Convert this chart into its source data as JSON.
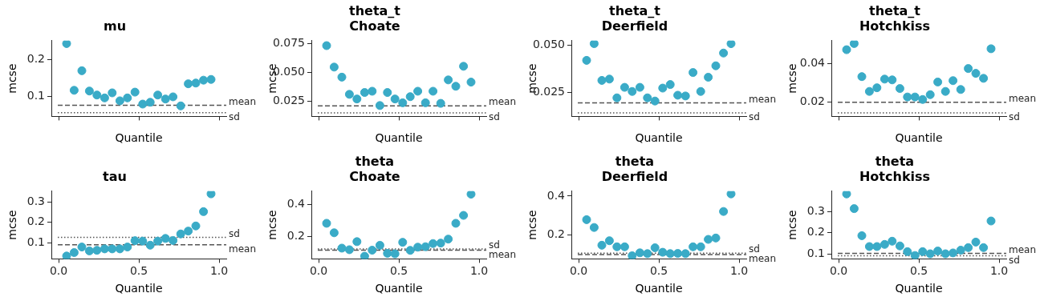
{
  "chart_data": [
    {
      "type": "scatter",
      "title": "mu",
      "xlabel": "Quantile",
      "ylabel": "mcse",
      "color": "#3aabc7",
      "marker": "circle",
      "tick_labels": "y",
      "xlim": [
        -0.045,
        1.045
      ],
      "ylim": [
        0.044,
        0.253
      ],
      "xticks": [
        {
          "value": 0,
          "label": null
        },
        {
          "value": 0.5,
          "label": null
        },
        {
          "value": 1,
          "label": null
        }
      ],
      "yticks": [
        0.1,
        0.2
      ],
      "x": [
        0.05,
        0.097,
        0.145,
        0.192,
        0.239,
        0.287,
        0.334,
        0.382,
        0.429,
        0.476,
        0.524,
        0.571,
        0.618,
        0.666,
        0.713,
        0.761,
        0.808,
        0.855,
        0.903,
        0.95
      ],
      "values": [
        0.245,
        0.116,
        0.17,
        0.114,
        0.103,
        0.095,
        0.109,
        0.087,
        0.095,
        0.111,
        0.078,
        0.083,
        0.103,
        0.092,
        0.098,
        0.073,
        0.134,
        0.136,
        0.144,
        0.146
      ],
      "ref_lines": [
        {
          "axis": "y",
          "value": 0.0745,
          "label": "mean",
          "line_style": "dashed",
          "color": "#555555"
        },
        {
          "axis": "y",
          "value": 0.054,
          "label": "sd",
          "line_style": "dotted",
          "color": "#555555"
        }
      ]
    },
    {
      "type": "scatter",
      "title": "theta_t\nChoate",
      "xlabel": "Quantile",
      "ylabel": "mcse",
      "color": "#3aabc7",
      "marker": "circle",
      "tick_labels": "y",
      "xlim": [
        -0.045,
        1.045
      ],
      "ylim": [
        0.0119,
        0.0775
      ],
      "xticks": [
        {
          "value": 0,
          "label": null
        },
        {
          "value": 0.5,
          "label": null
        },
        {
          "value": 1,
          "label": null
        }
      ],
      "yticks": [
        0.025,
        {
          "value": 0.05,
          "label": "0.050"
        },
        0.075
      ],
      "x": [
        0.05,
        0.097,
        0.145,
        0.192,
        0.239,
        0.287,
        0.334,
        0.382,
        0.429,
        0.476,
        0.524,
        0.571,
        0.618,
        0.666,
        0.713,
        0.761,
        0.808,
        0.855,
        0.903,
        0.95
      ],
      "values": [
        0.0732,
        0.0546,
        0.0459,
        0.031,
        0.027,
        0.0326,
        0.0337,
        0.0213,
        0.0326,
        0.027,
        0.0237,
        0.029,
        0.0337,
        0.0237,
        0.0337,
        0.0232,
        0.0435,
        0.038,
        0.0553,
        0.0416
      ],
      "ref_lines": [
        {
          "axis": "y",
          "value": 0.0211,
          "label": "mean",
          "line_style": "dashed",
          "color": "#555555"
        },
        {
          "axis": "y",
          "value": 0.0149,
          "label": "sd",
          "line_style": "dotted",
          "color": "#555555"
        }
      ]
    },
    {
      "type": "scatter",
      "title": "theta_t\nDeerfield",
      "xlabel": "Quantile",
      "ylabel": "mcse",
      "color": "#3aabc7",
      "marker": "circle",
      "tick_labels": "y",
      "xlim": [
        -0.045,
        1.045
      ],
      "ylim": [
        0.0121,
        0.0525
      ],
      "xticks": [
        {
          "value": 0,
          "label": null
        },
        {
          "value": 0.5,
          "label": null
        },
        {
          "value": 1,
          "label": null
        }
      ],
      "yticks": [
        0.025,
        {
          "value": 0.05,
          "label": "0.050"
        }
      ],
      "x": [
        0.05,
        0.097,
        0.145,
        0.192,
        0.239,
        0.287,
        0.334,
        0.382,
        0.429,
        0.476,
        0.524,
        0.571,
        0.618,
        0.666,
        0.713,
        0.761,
        0.808,
        0.855,
        0.903,
        0.95
      ],
      "values": [
        0.042,
        0.0509,
        0.0313,
        0.032,
        0.022,
        0.0276,
        0.0254,
        0.0276,
        0.022,
        0.0203,
        0.0272,
        0.0291,
        0.0234,
        0.023,
        0.0355,
        0.0254,
        0.033,
        0.0391,
        0.0459,
        0.0509
      ],
      "ref_lines": [
        {
          "axis": "y",
          "value": 0.0193,
          "label": "mean",
          "line_style": "dashed",
          "color": "#555555"
        },
        {
          "axis": "y",
          "value": 0.014,
          "label": "sd",
          "line_style": "dotted",
          "color": "#555555"
        }
      ]
    },
    {
      "type": "scatter",
      "title": "theta_t\nHotchkiss",
      "xlabel": "Quantile",
      "ylabel": "mcse",
      "color": "#3aabc7",
      "marker": "circle",
      "tick_labels": "y",
      "xlim": [
        -0.045,
        1.045
      ],
      "ylim": [
        0.0125,
        0.0519
      ],
      "xticks": [
        {
          "value": 0,
          "label": null
        },
        {
          "value": 0.5,
          "label": null
        },
        {
          "value": 1,
          "label": null
        }
      ],
      "yticks": [
        0.02,
        0.04
      ],
      "x": [
        0.05,
        0.097,
        0.145,
        0.192,
        0.239,
        0.287,
        0.334,
        0.382,
        0.429,
        0.476,
        0.524,
        0.571,
        0.618,
        0.666,
        0.713,
        0.761,
        0.808,
        0.855,
        0.903,
        0.95
      ],
      "values": [
        0.0472,
        0.0504,
        0.0332,
        0.0255,
        0.0274,
        0.0319,
        0.0315,
        0.027,
        0.0226,
        0.0226,
        0.0213,
        0.0238,
        0.0304,
        0.0255,
        0.0311,
        0.0265,
        0.0374,
        0.0349,
        0.0323,
        0.0477
      ],
      "ref_lines": [
        {
          "axis": "y",
          "value": 0.0199,
          "label": "mean",
          "line_style": "dashed",
          "color": "#555555"
        },
        {
          "axis": "y",
          "value": 0.0143,
          "label": "sd",
          "line_style": "dotted",
          "color": "#555555"
        }
      ]
    },
    {
      "type": "scatter",
      "title": "tau",
      "xlabel": "Quantile",
      "ylabel": "mcse",
      "color": "#3aabc7",
      "marker": "circle",
      "xlim": [
        -0.045,
        1.045
      ],
      "ylim": [
        0.021,
        0.352
      ],
      "xticks": [
        {
          "value": 0,
          "label": "0.0"
        },
        {
          "value": 0.5,
          "label": "0.5"
        },
        {
          "value": 1,
          "label": "1.0"
        }
      ],
      "yticks": [
        0.1,
        0.2,
        0.3
      ],
      "x": [
        0.05,
        0.097,
        0.145,
        0.192,
        0.239,
        0.287,
        0.334,
        0.382,
        0.429,
        0.476,
        0.524,
        0.571,
        0.618,
        0.666,
        0.713,
        0.761,
        0.808,
        0.855,
        0.903,
        0.95
      ],
      "values": [
        0.035,
        0.052,
        0.079,
        0.06,
        0.063,
        0.07,
        0.07,
        0.07,
        0.079,
        0.11,
        0.108,
        0.088,
        0.108,
        0.121,
        0.111,
        0.143,
        0.157,
        0.182,
        0.252,
        0.339
      ],
      "ref_lines": [
        {
          "axis": "y",
          "value": 0.09,
          "label": "mean",
          "line_style": "dashed",
          "color": "#555555"
        },
        {
          "axis": "y",
          "value": 0.126,
          "label": "sd",
          "line_style": "dotted",
          "color": "#555555"
        }
      ]
    },
    {
      "type": "scatter",
      "title": "theta\nChoate",
      "xlabel": "Quantile",
      "ylabel": "mcse",
      "color": "#3aabc7",
      "marker": "circle",
      "xlim": [
        -0.045,
        1.045
      ],
      "ylim": [
        0.057,
        0.485
      ],
      "xticks": [
        {
          "value": 0,
          "label": "0.0"
        },
        {
          "value": 0.5,
          "label": "0.5"
        },
        {
          "value": 1,
          "label": "1.0"
        }
      ],
      "yticks": [
        0.2,
        0.4
      ],
      "x": [
        0.05,
        0.097,
        0.145,
        0.192,
        0.239,
        0.287,
        0.334,
        0.382,
        0.429,
        0.476,
        0.524,
        0.571,
        0.618,
        0.666,
        0.713,
        0.761,
        0.808,
        0.855,
        0.903,
        0.95
      ],
      "values": [
        0.282,
        0.222,
        0.125,
        0.115,
        0.166,
        0.074,
        0.112,
        0.143,
        0.092,
        0.089,
        0.162,
        0.111,
        0.131,
        0.134,
        0.154,
        0.157,
        0.182,
        0.282,
        0.332,
        0.466
      ],
      "ref_lines": [
        {
          "axis": "y",
          "value": 0.112,
          "label": "mean",
          "line_style": "dashed",
          "color": "#555555"
        },
        {
          "axis": "y",
          "value": 0.12,
          "label": "sd",
          "line_style": "dotted",
          "color": "#555555"
        }
      ]
    },
    {
      "type": "scatter",
      "title": "theta\nDeerfield",
      "xlabel": "Quantile",
      "ylabel": "mcse",
      "color": "#3aabc7",
      "marker": "circle",
      "xlim": [
        -0.045,
        1.045
      ],
      "ylim": [
        0.078,
        0.425
      ],
      "xticks": [
        {
          "value": 0,
          "label": "0.0"
        },
        {
          "value": 0.5,
          "label": "0.5"
        },
        {
          "value": 1,
          "label": "1.0"
        }
      ],
      "yticks": [
        0.2,
        0.4
      ],
      "x": [
        0.05,
        0.097,
        0.145,
        0.192,
        0.239,
        0.287,
        0.334,
        0.382,
        0.429,
        0.476,
        0.524,
        0.571,
        0.618,
        0.666,
        0.713,
        0.761,
        0.808,
        0.855,
        0.903,
        0.95
      ],
      "values": [
        0.279,
        0.239,
        0.148,
        0.171,
        0.14,
        0.14,
        0.094,
        0.109,
        0.105,
        0.135,
        0.112,
        0.105,
        0.106,
        0.105,
        0.14,
        0.14,
        0.178,
        0.185,
        0.321,
        0.411
      ],
      "ref_lines": [
        {
          "axis": "y",
          "value": 0.1,
          "label": "mean",
          "line_style": "dashed",
          "color": "#555555"
        },
        {
          "axis": "y",
          "value": 0.107,
          "label": "sd",
          "line_style": "dotted",
          "color": "#555555"
        }
      ]
    },
    {
      "type": "scatter",
      "title": "theta\nHotchkiss",
      "xlabel": "Quantile",
      "ylabel": "mcse",
      "color": "#3aabc7",
      "marker": "circle",
      "xlim": [
        -0.045,
        1.045
      ],
      "ylim": [
        0.077,
        0.395
      ],
      "xticks": [
        {
          "value": 0,
          "label": "0.0"
        },
        {
          "value": 0.5,
          "label": "0.5"
        },
        {
          "value": 1,
          "label": "1.0"
        }
      ],
      "yticks": [
        0.1,
        0.2,
        0.3
      ],
      "x": [
        0.05,
        0.097,
        0.145,
        0.192,
        0.239,
        0.287,
        0.334,
        0.382,
        0.429,
        0.476,
        0.524,
        0.571,
        0.618,
        0.666,
        0.713,
        0.761,
        0.808,
        0.855,
        0.903,
        0.95
      ],
      "values": [
        0.382,
        0.313,
        0.186,
        0.135,
        0.135,
        0.145,
        0.16,
        0.138,
        0.111,
        0.093,
        0.111,
        0.101,
        0.114,
        0.101,
        0.105,
        0.118,
        0.13,
        0.156,
        0.13,
        0.255
      ],
      "ref_lines": [
        {
          "axis": "y",
          "value": 0.103,
          "label": "mean",
          "line_style": "dashed",
          "color": "#555555"
        },
        {
          "axis": "y",
          "value": 0.092,
          "label": "sd",
          "line_style": "dotted",
          "color": "#555555"
        }
      ]
    }
  ]
}
